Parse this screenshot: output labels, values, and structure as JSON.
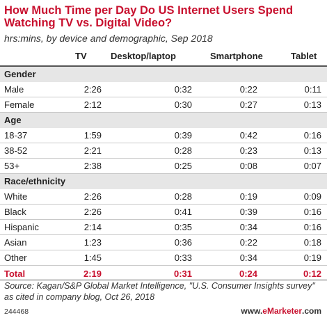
{
  "chart_data": {
    "type": "table",
    "title": "How Much Time per Day Do US Internet Users Spend Watching TV vs. Digital Video?",
    "subtitle": "hrs:mins, by device and demographic, Sep 2018",
    "columns": [
      "",
      "TV",
      "Desktop/laptop",
      "Smartphone",
      "Tablet"
    ],
    "groups": [
      {
        "name": "Gender",
        "rows": [
          {
            "label": "Male",
            "values": [
              "2:26",
              "0:32",
              "0:22",
              "0:11"
            ]
          },
          {
            "label": "Female",
            "values": [
              "2:12",
              "0:30",
              "0:27",
              "0:13"
            ]
          }
        ]
      },
      {
        "name": "Age",
        "rows": [
          {
            "label": "18-37",
            "values": [
              "1:59",
              "0:39",
              "0:42",
              "0:16"
            ]
          },
          {
            "label": "38-52",
            "values": [
              "2:21",
              "0:28",
              "0:23",
              "0:13"
            ]
          },
          {
            "label": "53+",
            "values": [
              "2:38",
              "0:25",
              "0:08",
              "0:07"
            ]
          }
        ]
      },
      {
        "name": "Race/ethnicity",
        "rows": [
          {
            "label": "White",
            "values": [
              "2:26",
              "0:28",
              "0:19",
              "0:09"
            ]
          },
          {
            "label": "Black",
            "values": [
              "2:26",
              "0:41",
              "0:39",
              "0:16"
            ]
          },
          {
            "label": "Hispanic",
            "values": [
              "2:14",
              "0:35",
              "0:34",
              "0:16"
            ]
          },
          {
            "label": "Asian",
            "values": [
              "1:23",
              "0:36",
              "0:22",
              "0:18"
            ]
          },
          {
            "label": "Other",
            "values": [
              "1:45",
              "0:33",
              "0:34",
              "0:19"
            ]
          }
        ]
      }
    ],
    "total": {
      "label": "Total",
      "values": [
        "2:19",
        "0:31",
        "0:24",
        "0:12"
      ]
    }
  },
  "footer": {
    "source": "Source: Kagan/S&P Global Market Intelligence, \"U.S. Consumer Insights survey\" as cited in company blog, Oct 26, 2018",
    "id": "244468",
    "brand_prefix": "www.",
    "brand_name": "eMarketer",
    "brand_suffix": ".com"
  },
  "colors": {
    "accent": "#c8102e",
    "group_bg": "#e6e6e6"
  }
}
